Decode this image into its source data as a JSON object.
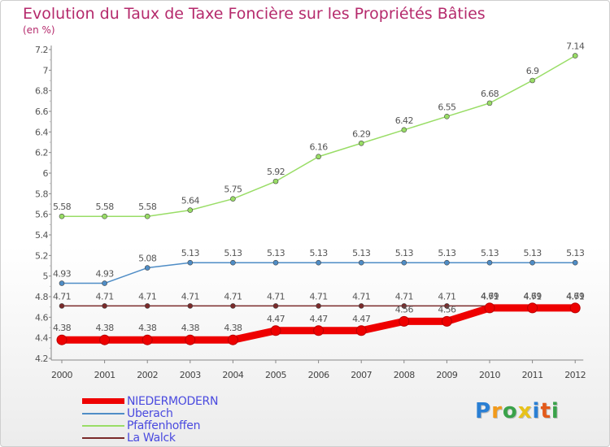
{
  "title": "Evolution du Taux de Taxe Foncière sur les Propriétés Bâties",
  "unit": "(en %)",
  "logo": {
    "text": "Proxiti",
    "colors": [
      "#2a7fd4",
      "#f29a1a",
      "#3aa24a",
      "#e8c21a",
      "#2a7fd4",
      "#e35a1a",
      "#3aa24a"
    ]
  },
  "chart_data": {
    "type": "line",
    "categories": [
      "2000",
      "2001",
      "2002",
      "2003",
      "2004",
      "2005",
      "2006",
      "2007",
      "2008",
      "2009",
      "2010",
      "2011",
      "2012"
    ],
    "ylim": [
      4.2,
      7.2
    ],
    "yticks": [
      "4.2",
      "4.4",
      "4.6",
      "4.8",
      "5",
      "5.2",
      "5.4",
      "5.6",
      "5.8",
      "6",
      "6.2",
      "6.4",
      "6.6",
      "6.8",
      "7",
      "7.2"
    ],
    "grid": false,
    "legend_position": "bottom-left",
    "series": [
      {
        "name": "NIEDERMODERN",
        "color": "#ee0000",
        "values": [
          4.38,
          4.38,
          4.38,
          4.38,
          4.38,
          4.47,
          4.47,
          4.47,
          4.56,
          4.56,
          4.69,
          4.69,
          4.69
        ],
        "labels": [
          "4.38",
          "4.38",
          "4.38",
          "4.38",
          "4.38",
          "4.47",
          "4.47",
          "4.47",
          "4.56",
          "4.56",
          "4.69",
          "4.69",
          "4.69"
        ]
      },
      {
        "name": "Uberach",
        "color": "#4f8dc6",
        "values": [
          4.93,
          4.93,
          5.08,
          5.13,
          5.13,
          5.13,
          5.13,
          5.13,
          5.13,
          5.13,
          5.13,
          5.13,
          5.13
        ],
        "labels": [
          "4.93",
          "4.93",
          "5.08",
          "5.13",
          "5.13",
          "5.13",
          "5.13",
          "5.13",
          "5.13",
          "5.13",
          "5.13",
          "5.13",
          "5.13"
        ]
      },
      {
        "name": "Pfaffenhoffen",
        "color": "#99dd66",
        "values": [
          5.58,
          5.58,
          5.58,
          5.64,
          5.75,
          5.92,
          6.16,
          6.29,
          6.42,
          6.55,
          6.68,
          6.9,
          7.14
        ],
        "labels": [
          "5.58",
          "5.58",
          "5.58",
          "5.64",
          "5.75",
          "5.92",
          "6.16",
          "6.29",
          "6.42",
          "6.55",
          "6.68",
          "6.9",
          "7.14"
        ]
      },
      {
        "name": "La Walck",
        "color": "#7a2a2a",
        "values": [
          4.71,
          4.71,
          4.71,
          4.71,
          4.71,
          4.71,
          4.71,
          4.71,
          4.71,
          4.71,
          4.71,
          4.71,
          4.71
        ],
        "labels": [
          "4.71",
          "4.71",
          "4.71",
          "4.71",
          "4.71",
          "4.71",
          "4.71",
          "4.71",
          "4.71",
          "4.71",
          "4.71",
          "4.71",
          "4.71"
        ]
      }
    ]
  }
}
